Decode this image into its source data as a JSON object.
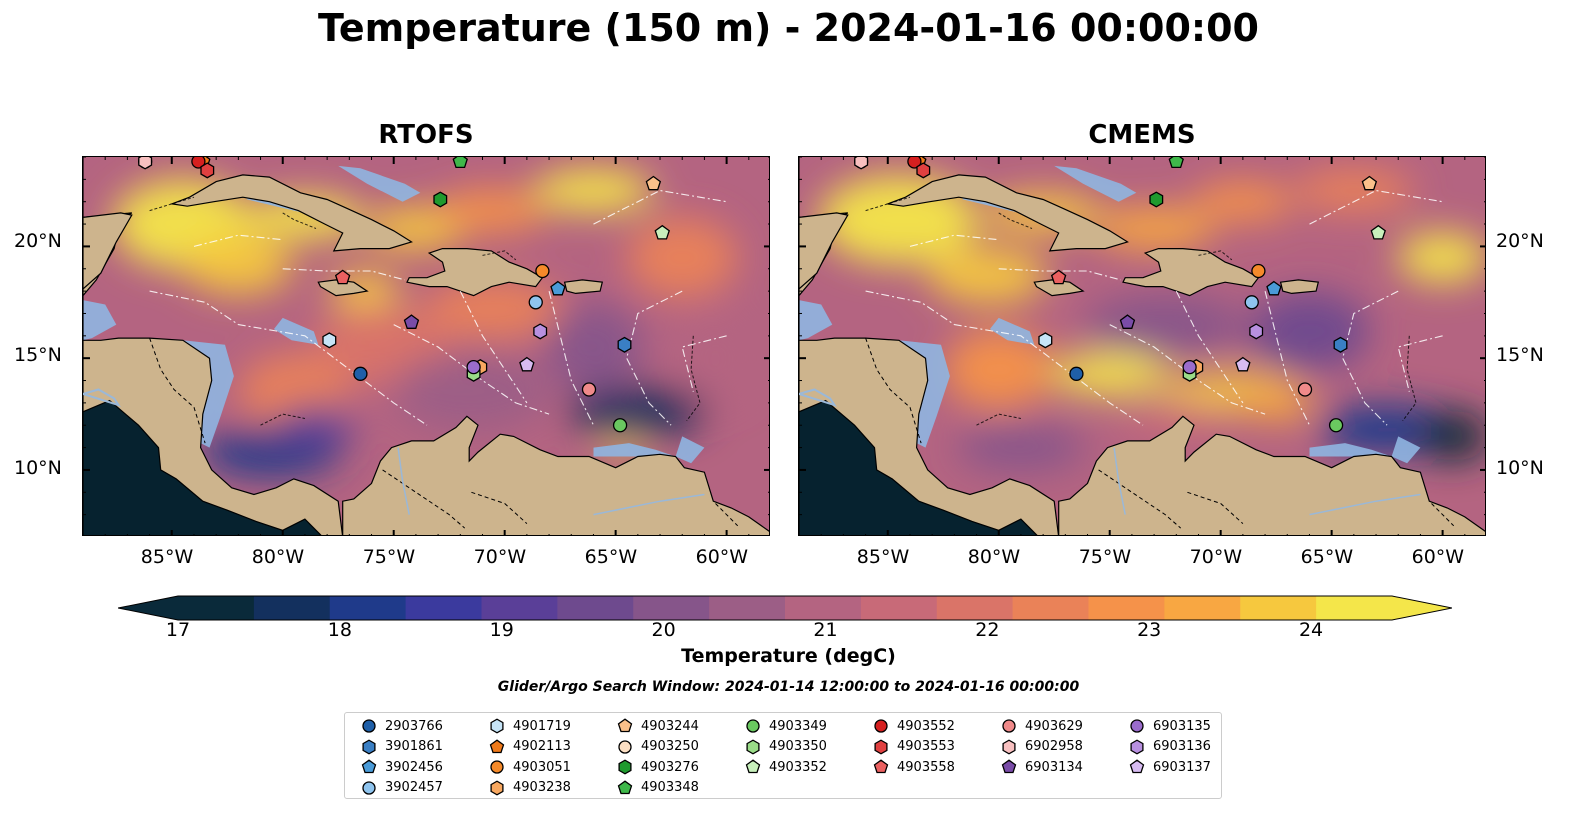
{
  "title": "Temperature (150 m) - 2024-01-16 00:00:00",
  "panels": [
    {
      "title": "RTOFS"
    },
    {
      "title": "CMEMS"
    }
  ],
  "axes": {
    "lon_ticks": [
      "85°W",
      "80°W",
      "75°W",
      "70°W",
      "65°W",
      "60°W"
    ],
    "lat_ticks": [
      "20°N",
      "15°N",
      "10°N"
    ]
  },
  "colorbar": {
    "label": "Temperature (degC)",
    "ticks": [
      "17",
      "18",
      "19",
      "20",
      "21",
      "22",
      "23",
      "24"
    ],
    "range": [
      17,
      24.5
    ],
    "colormap": "thermal",
    "colors": [
      "#0a2a3a",
      "#13305e",
      "#1f3a8a",
      "#3b3a9e",
      "#5a3f98",
      "#6e4a8e",
      "#86558a",
      "#9c5e86",
      "#b46481",
      "#c86a78",
      "#da7468",
      "#ea8258",
      "#f5924a",
      "#f8a742",
      "#f6c83e",
      "#f4e64a"
    ]
  },
  "search_window": "Glider/Argo Search Window: 2024-01-14 12:00:00 to 2024-01-16 00:00:00",
  "legend": {
    "columns": [
      [
        {
          "id": "2903766",
          "marker": "circle",
          "color": "#1f5fa8"
        },
        {
          "id": "3901861",
          "marker": "hexagon",
          "color": "#3a7fc4"
        },
        {
          "id": "3902456",
          "marker": "pentagon",
          "color": "#4a9bd8"
        },
        {
          "id": "3902457",
          "marker": "circle",
          "color": "#8fc4ee"
        }
      ],
      [
        {
          "id": "4901719",
          "marker": "hexagon",
          "color": "#c6e4f7"
        },
        {
          "id": "4902113",
          "marker": "pentagon",
          "color": "#f07a1a"
        },
        {
          "id": "4903051",
          "marker": "circle",
          "color": "#f58a2a"
        },
        {
          "id": "4903238",
          "marker": "hexagon",
          "color": "#f8a860"
        }
      ],
      [
        {
          "id": "4903244",
          "marker": "pentagon",
          "color": "#fbc08a"
        },
        {
          "id": "4903250",
          "marker": "circle",
          "color": "#fde0c4"
        },
        {
          "id": "4903276",
          "marker": "hexagon",
          "color": "#1f9a2e"
        },
        {
          "id": "4903348",
          "marker": "pentagon",
          "color": "#3fb84a"
        }
      ],
      [
        {
          "id": "4903349",
          "marker": "circle",
          "color": "#6ac860"
        },
        {
          "id": "4903350",
          "marker": "hexagon",
          "color": "#9adc88"
        },
        {
          "id": "4903352",
          "marker": "pentagon",
          "color": "#c8f0bc"
        }
      ],
      [
        {
          "id": "4903552",
          "marker": "circle",
          "color": "#d62020"
        },
        {
          "id": "4903553",
          "marker": "hexagon",
          "color": "#e04040"
        },
        {
          "id": "4903558",
          "marker": "pentagon",
          "color": "#ea6060"
        }
      ],
      [
        {
          "id": "4903629",
          "marker": "circle",
          "color": "#f08a8a"
        },
        {
          "id": "6902958",
          "marker": "hexagon",
          "color": "#f8c0c0"
        },
        {
          "id": "6903134",
          "marker": "pentagon",
          "color": "#7a4ca8"
        }
      ],
      [
        {
          "id": "6903135",
          "marker": "circle",
          "color": "#9a6ccc"
        },
        {
          "id": "6903136",
          "marker": "hexagon",
          "color": "#b890e0"
        },
        {
          "id": "6903137",
          "marker": "pentagon",
          "color": "#d8bcf2"
        }
      ]
    ]
  },
  "map_extent": {
    "lon": [
      -89,
      -58
    ],
    "lat": [
      7,
      24
    ]
  },
  "floats": [
    {
      "id": "2903766",
      "lon": -76.5,
      "lat": 14.3
    },
    {
      "id": "3901861",
      "lon": -64.6,
      "lat": 15.6
    },
    {
      "id": "3902456",
      "lon": -67.6,
      "lat": 18.1
    },
    {
      "id": "3902457",
      "lon": -68.6,
      "lat": 17.5
    },
    {
      "id": "4901719",
      "lon": -77.9,
      "lat": 15.8
    },
    {
      "id": "4902113",
      "lon": -83.6,
      "lat": 23.8
    },
    {
      "id": "4903051",
      "lon": -68.3,
      "lat": 18.9
    },
    {
      "id": "4903238",
      "lon": -71.1,
      "lat": 14.6
    },
    {
      "id": "4903244",
      "lon": -63.3,
      "lat": 22.8
    },
    {
      "id": "4903250",
      "lon": -86.2,
      "lat": 23.8
    },
    {
      "id": "4903276",
      "lon": -72.9,
      "lat": 22.1
    },
    {
      "id": "4903348",
      "lon": -72.0,
      "lat": 23.8
    },
    {
      "id": "4903349",
      "lon": -64.8,
      "lat": 12.0
    },
    {
      "id": "4903350",
      "lon": -71.4,
      "lat": 14.3
    },
    {
      "id": "4903352",
      "lon": -62.9,
      "lat": 20.6
    },
    {
      "id": "4903552",
      "lon": -83.8,
      "lat": 23.8
    },
    {
      "id": "4903553",
      "lon": -83.4,
      "lat": 23.4
    },
    {
      "id": "4903558",
      "lon": -77.3,
      "lat": 18.6
    },
    {
      "id": "4903629",
      "lon": -66.2,
      "lat": 13.6
    },
    {
      "id": "6902958",
      "lon": -86.2,
      "lat": 23.8
    },
    {
      "id": "6903134",
      "lon": -74.2,
      "lat": 16.6
    },
    {
      "id": "6903135",
      "lon": -71.4,
      "lat": 14.6
    },
    {
      "id": "6903136",
      "lon": -68.4,
      "lat": 16.2
    },
    {
      "id": "6903137",
      "lon": -69.0,
      "lat": 14.7
    }
  ]
}
